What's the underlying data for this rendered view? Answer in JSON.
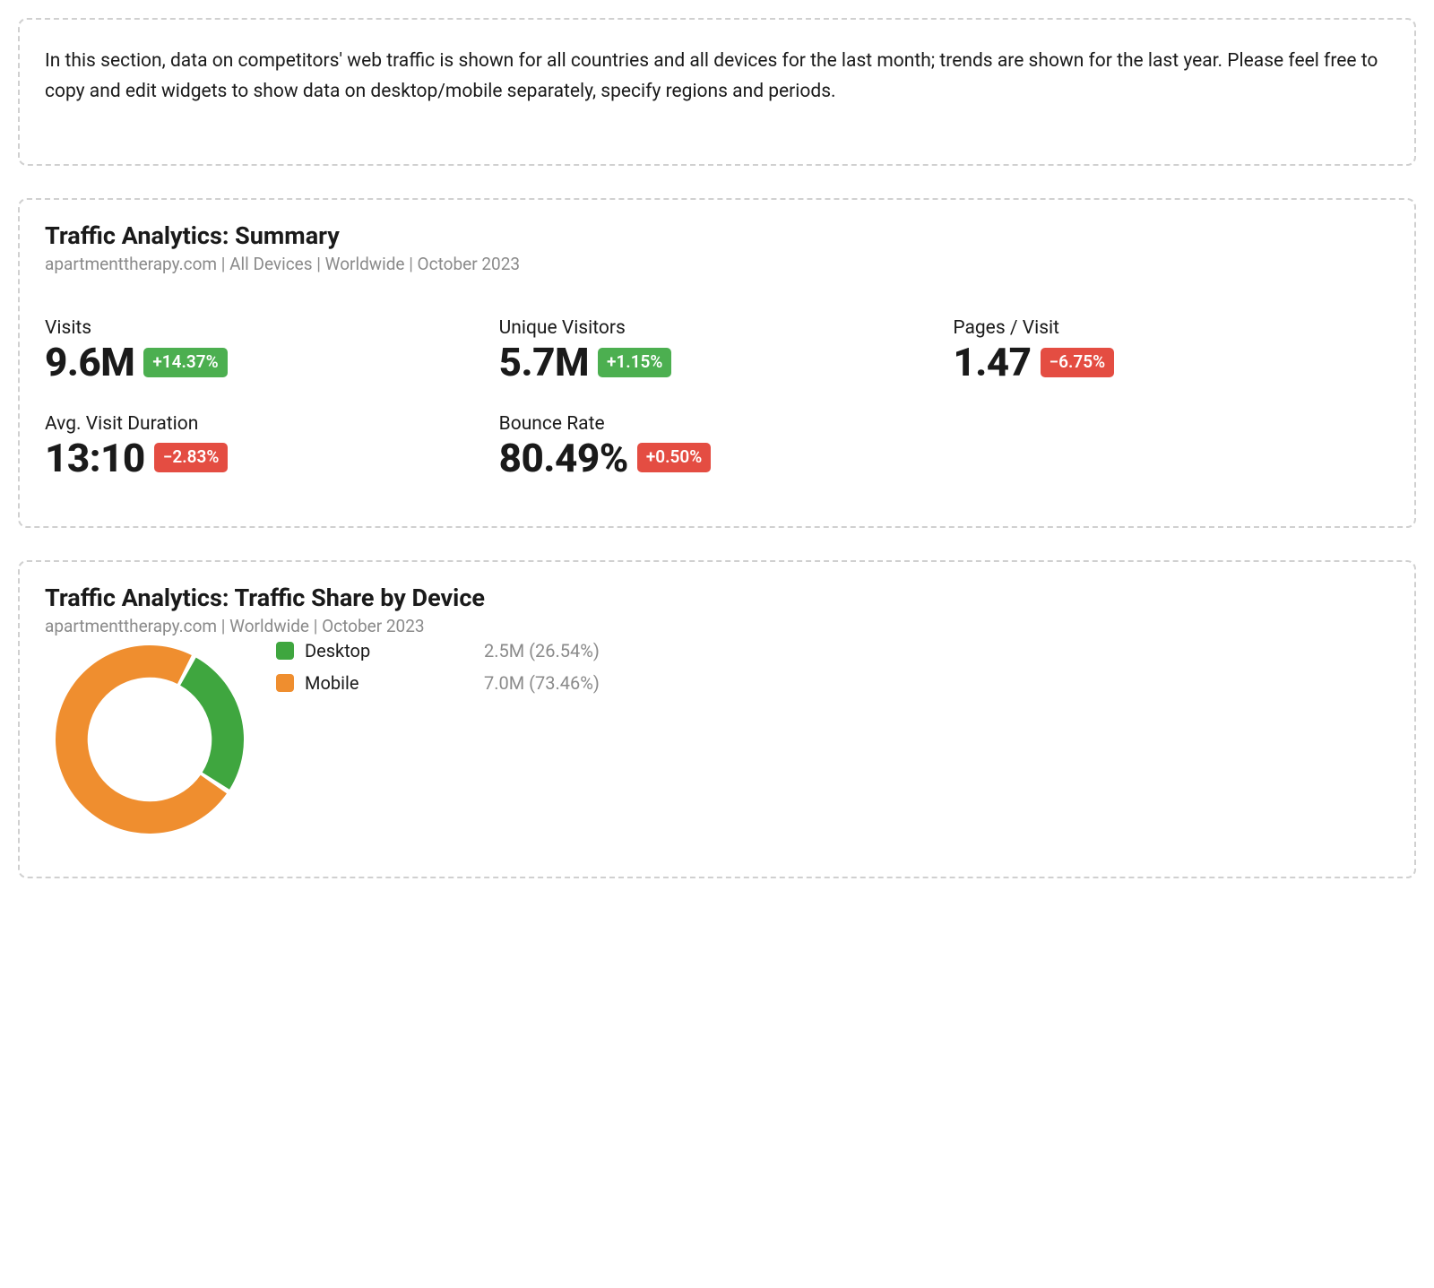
{
  "info_card": {
    "text": "In this section, data on competitors' web traffic is shown for all countries and all devices for the last month; trends are shown for the last year. Please feel free to copy and edit widgets to show data on desktop/mobile separately, specify regions and periods."
  },
  "summary_card": {
    "title": "Traffic Analytics: Summary",
    "subtitle": "apartmenttherapy.com | All Devices | Worldwide | October 2023",
    "metrics": {
      "visits": {
        "label": "Visits",
        "value": "9.6M",
        "delta": "+14.37%",
        "delta_positive": true
      },
      "unique_visitors": {
        "label": "Unique Visitors",
        "value": "5.7M",
        "delta": "+1.15%",
        "delta_positive": true
      },
      "pages_per_visit": {
        "label": "Pages / Visit",
        "value": "1.47",
        "delta": "−6.75%",
        "delta_positive": false
      },
      "avg_duration": {
        "label": "Avg. Visit Duration",
        "value": "13:10",
        "delta": "−2.83%",
        "delta_positive": false
      },
      "bounce_rate": {
        "label": "Bounce Rate",
        "value": "80.49%",
        "delta": "+0.50%",
        "delta_positive": false
      }
    },
    "colors": {
      "badge_green": "#4caf50",
      "badge_red": "#e44d42"
    }
  },
  "device_card": {
    "title": "Traffic Analytics: Traffic Share by Device",
    "subtitle": "apartmenttherapy.com | Worldwide | October 2023",
    "donut": {
      "type": "donut",
      "outer_radius": 100,
      "inner_radius": 66,
      "gap_deg": 3,
      "start_angle_deg": -62,
      "background_color": "#ffffff",
      "slices": [
        {
          "key": "desktop",
          "label": "Desktop",
          "value_text": "2.5M (26.54%)",
          "percent": 26.54,
          "color": "#3fa63f"
        },
        {
          "key": "mobile",
          "label": "Mobile",
          "value_text": "7.0M (73.46%)",
          "percent": 73.46,
          "color": "#ef8e2f"
        }
      ]
    }
  }
}
